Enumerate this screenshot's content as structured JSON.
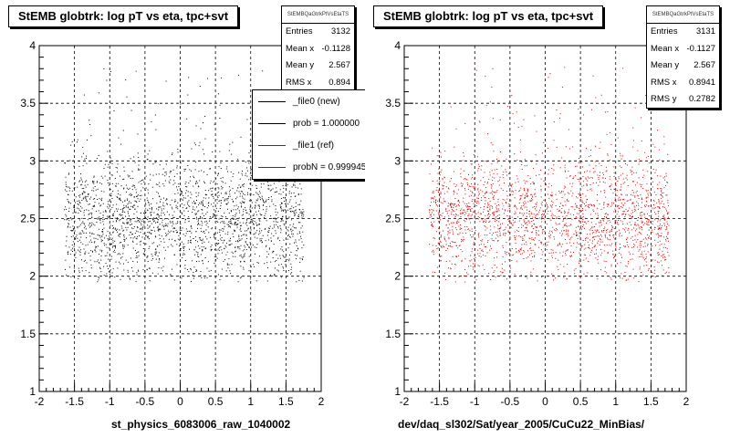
{
  "chart_data": [
    {
      "type": "scatter",
      "title": "StEMB globtrk: log pT vs eta, tpc+svt",
      "xlabel": "st_physics_6083006_raw_1040002",
      "ylabel": "",
      "xlim": [
        -2,
        2
      ],
      "ylim": [
        1,
        4
      ],
      "x_ticks": [
        "-2",
        "-1.5",
        "-1",
        "-0.5",
        "0",
        "0.5",
        "1",
        "1.5",
        "2"
      ],
      "y_ticks": [
        "1",
        "1.5",
        "2",
        "2.5",
        "3",
        "3.5",
        "4"
      ],
      "grid": true,
      "point_color": "#000000",
      "distribution": {
        "x_min": -1.65,
        "x_max": 1.75,
        "y_center": 2.5,
        "y_spread": 0.28,
        "points_drawn": 2200
      },
      "stats": {
        "header": "StEMBQaGtrkPtVsEtaTS",
        "rows": [
          {
            "label": "Entries",
            "value": "3132"
          },
          {
            "label": "Mean x",
            "value": "-0.1128"
          },
          {
            "label": "Mean y",
            "value": "2.567"
          },
          {
            "label": "RMS x",
            "value": "0.894"
          }
        ]
      },
      "legend": [
        {
          "label": "_file0 (new)",
          "color": "#000000"
        },
        {
          "label": "prob = 1.000000",
          "color": "#000000"
        },
        {
          "label": "_file1 (ref)",
          "color": "#cc0000"
        },
        {
          "label": "probN = 0.999945",
          "color": "#cc0000"
        }
      ]
    },
    {
      "type": "scatter",
      "title": "StEMB globtrk: log pT vs eta, tpc+svt",
      "xlabel": "dev/daq_sl302/Sat/year_2005/CuCu22_MinBias/",
      "ylabel": "",
      "xlim": [
        -2,
        2
      ],
      "ylim": [
        1,
        4
      ],
      "x_ticks": [
        "-2",
        "-1.5",
        "-1",
        "-0.5",
        "0",
        "0.5",
        "1",
        "1.5",
        "2"
      ],
      "y_ticks": [
        "1",
        "1.5",
        "2",
        "2.5",
        "3",
        "3.5",
        "4"
      ],
      "grid": true,
      "point_color": "#dd0000",
      "distribution": {
        "x_min": -1.65,
        "x_max": 1.75,
        "y_center": 2.5,
        "y_spread": 0.28,
        "points_drawn": 2200
      },
      "stats": {
        "header": "StEMBQaGtrkPtVsEtaTS",
        "rows": [
          {
            "label": "Entries",
            "value": "3131"
          },
          {
            "label": "Mean x",
            "value": "-0.1127"
          },
          {
            "label": "Mean y",
            "value": "2.567"
          },
          {
            "label": "RMS x",
            "value": "0.8941"
          },
          {
            "label": "RMS y",
            "value": "0.2782"
          }
        ]
      }
    }
  ]
}
